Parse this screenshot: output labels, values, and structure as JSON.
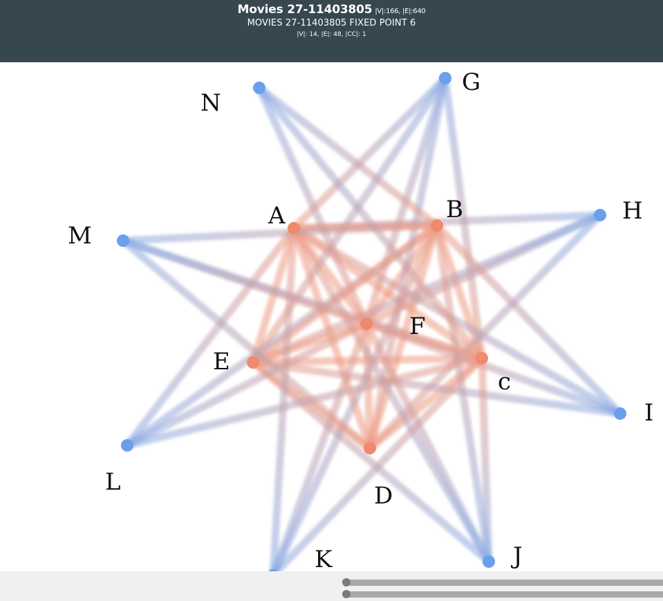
{
  "header": {
    "title": "Movies 27-11403805",
    "title_stats": "|V|:166, |E|:640",
    "subtitle": "MOVIES 27-11403805 FIXED POINT 6",
    "substats": "|V|: 14, |E|: 48, |CC|: 1"
  },
  "colors": {
    "header_bg": "#36474f",
    "inner_node": "#ef8a6e",
    "outer_node": "#6a9fec",
    "inner_edge": "#ef9b82",
    "outer_edge": "#8aabe6",
    "footer_bg": "#f0f0f0"
  },
  "graph": {
    "nodes": [
      {
        "id": "A",
        "label": "A",
        "group": "inner"
      },
      {
        "id": "B",
        "label": "B",
        "group": "inner"
      },
      {
        "id": "C",
        "label": "c",
        "group": "inner"
      },
      {
        "id": "D",
        "label": "D",
        "group": "inner"
      },
      {
        "id": "E",
        "label": "E",
        "group": "inner"
      },
      {
        "id": "F",
        "label": "F",
        "group": "inner"
      },
      {
        "id": "G",
        "label": "G",
        "group": "outer"
      },
      {
        "id": "H",
        "label": "H",
        "group": "outer"
      },
      {
        "id": "I",
        "label": "I",
        "group": "outer"
      },
      {
        "id": "J",
        "label": "J",
        "group": "outer"
      },
      {
        "id": "K",
        "label": "K",
        "group": "outer"
      },
      {
        "id": "L",
        "label": "L",
        "group": "outer"
      },
      {
        "id": "M",
        "label": "M",
        "group": "outer"
      },
      {
        "id": "N",
        "label": "N",
        "group": "outer"
      }
    ],
    "edges": [
      [
        "A",
        "B"
      ],
      [
        "A",
        "C"
      ],
      [
        "A",
        "D"
      ],
      [
        "A",
        "E"
      ],
      [
        "A",
        "F"
      ],
      [
        "B",
        "C"
      ],
      [
        "B",
        "D"
      ],
      [
        "B",
        "E"
      ],
      [
        "B",
        "F"
      ],
      [
        "C",
        "D"
      ],
      [
        "C",
        "E"
      ],
      [
        "C",
        "F"
      ],
      [
        "D",
        "E"
      ],
      [
        "D",
        "F"
      ],
      [
        "E",
        "F"
      ],
      [
        "G",
        "A"
      ],
      [
        "G",
        "C"
      ],
      [
        "G",
        "D"
      ],
      [
        "G",
        "E"
      ],
      [
        "G",
        "F"
      ],
      [
        "H",
        "A"
      ],
      [
        "H",
        "E"
      ],
      [
        "H",
        "F"
      ],
      [
        "H",
        "D"
      ],
      [
        "I",
        "A"
      ],
      [
        "I",
        "B"
      ],
      [
        "I",
        "E"
      ],
      [
        "I",
        "F"
      ],
      [
        "J",
        "A"
      ],
      [
        "J",
        "B"
      ],
      [
        "J",
        "C"
      ],
      [
        "J",
        "E"
      ],
      [
        "J",
        "F"
      ],
      [
        "K",
        "A"
      ],
      [
        "K",
        "B"
      ],
      [
        "K",
        "C"
      ],
      [
        "K",
        "F"
      ],
      [
        "L",
        "B"
      ],
      [
        "L",
        "C"
      ],
      [
        "L",
        "F"
      ],
      [
        "L",
        "A"
      ],
      [
        "M",
        "B"
      ],
      [
        "M",
        "C"
      ],
      [
        "M",
        "D"
      ],
      [
        "M",
        "F"
      ],
      [
        "N",
        "B"
      ],
      [
        "N",
        "C"
      ],
      [
        "N",
        "F"
      ]
    ]
  }
}
